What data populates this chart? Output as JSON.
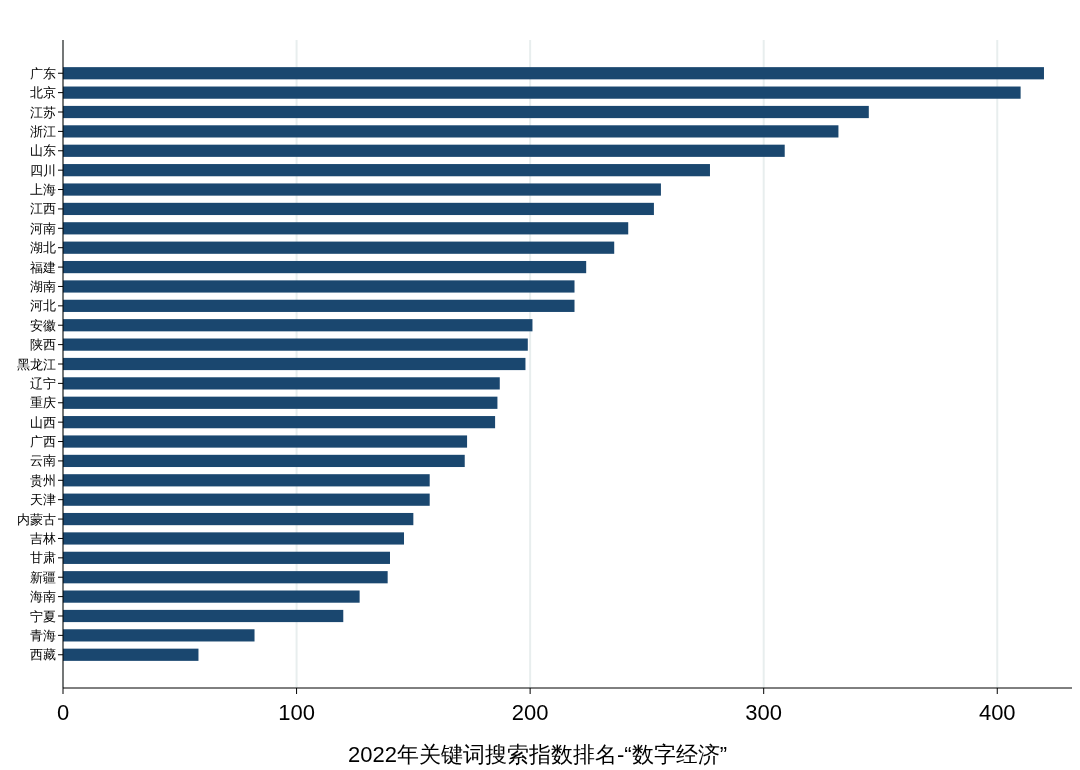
{
  "chart_data": {
    "type": "bar",
    "orientation": "horizontal",
    "xlabel": "2022年关键词搜索指数排名-“数字经济”",
    "categories": [
      "广东",
      "北京",
      "江苏",
      "浙江",
      "山东",
      "四川",
      "上海",
      "江西",
      "河南",
      "湖北",
      "福建",
      "湖南",
      "河北",
      "安徽",
      "陕西",
      "黑龙江",
      "辽宁",
      "重庆",
      "山西",
      "广西",
      "云南",
      "贵州",
      "天津",
      "内蒙古",
      "吉林",
      "甘肃",
      "新疆",
      "海南",
      "宁夏",
      "青海",
      "西藏"
    ],
    "values": [
      420,
      410,
      345,
      332,
      309,
      277,
      256,
      253,
      242,
      236,
      224,
      219,
      219,
      201,
      199,
      198,
      187,
      186,
      185,
      173,
      172,
      157,
      157,
      150,
      146,
      140,
      139,
      127,
      120,
      82,
      58
    ],
    "color": "#1a476f",
    "xlim": [
      0,
      432
    ],
    "xticks": [
      0,
      100,
      200,
      300,
      400
    ],
    "grid": "x"
  }
}
